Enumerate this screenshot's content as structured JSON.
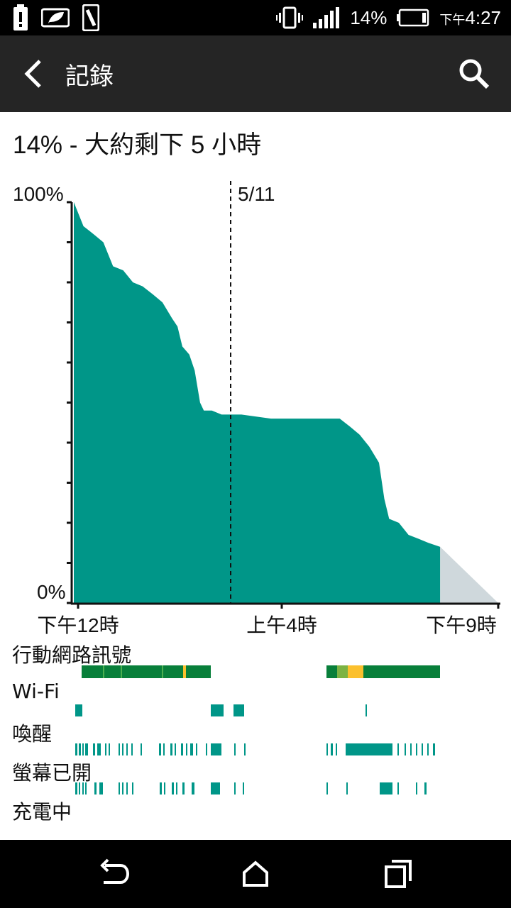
{
  "status_bar": {
    "icons": [
      "battery-alert-icon",
      "leaf-icon",
      "phone-card-icon",
      "vibrate-icon",
      "signal-icon",
      "battery-icon"
    ],
    "battery_percent": "14%",
    "time_prefix": "下午",
    "time": "4:27"
  },
  "app_bar": {
    "title": "記錄",
    "back_icon": "chevron-left-icon",
    "search_icon": "search-icon"
  },
  "summary": "14% - 大約剩下 5 小時",
  "chart_data": {
    "type": "area",
    "title": "",
    "ylabel_top": "100%",
    "ylabel_bottom": "0%",
    "ylim": [
      0,
      100
    ],
    "date_marker": "5/11",
    "x_ticks": [
      "下午12時",
      "上午4時",
      "下午9時"
    ],
    "series": [
      {
        "color": "#009688",
        "points": [
          [
            0,
            100
          ],
          [
            1.8,
            94
          ],
          [
            3.7,
            92
          ],
          [
            5.5,
            90
          ],
          [
            7.3,
            84
          ],
          [
            9.2,
            83
          ],
          [
            11,
            80
          ],
          [
            12.8,
            79
          ],
          [
            14.7,
            77
          ],
          [
            16.5,
            75
          ],
          [
            18.3,
            71
          ],
          [
            19.3,
            69
          ],
          [
            20.2,
            64
          ],
          [
            21.5,
            62
          ],
          [
            22.5,
            58
          ],
          [
            23.5,
            50
          ],
          [
            24.2,
            48
          ],
          [
            25.7,
            48
          ],
          [
            27.5,
            47
          ],
          [
            31.2,
            47
          ],
          [
            36.7,
            46
          ],
          [
            38.5,
            46
          ],
          [
            40.3,
            46
          ],
          [
            42.2,
            46
          ],
          [
            45.8,
            46
          ],
          [
            47.7,
            46
          ],
          [
            49.5,
            46
          ],
          [
            51.4,
            44
          ],
          [
            53.2,
            42
          ],
          [
            55,
            39
          ],
          [
            56.8,
            35
          ],
          [
            57.8,
            26
          ],
          [
            58.7,
            21
          ],
          [
            60.5,
            20
          ],
          [
            62.3,
            17
          ],
          [
            64.2,
            16
          ],
          [
            66.0,
            15
          ],
          [
            68.2,
            14
          ]
        ]
      },
      {
        "color": "#cfd8dc",
        "name": "",
        "points": [
          [
            68.2,
            14
          ],
          [
            79,
            0
          ]
        ]
      }
    ],
    "x_range_hours": [
      0,
      79
    ]
  },
  "activity_rows": [
    {
      "label": "行動網路訊號",
      "segments": [
        {
          "x": 115,
          "w": 182,
          "color": "#087f3a"
        },
        {
          "x": 145,
          "w": 2,
          "color": "#4caf50"
        },
        {
          "x": 170,
          "w": 2,
          "color": "#4caf50"
        },
        {
          "x": 228,
          "w": 2,
          "color": "#4caf50"
        },
        {
          "x": 258,
          "w": 4,
          "color": "#fbc02d"
        },
        {
          "x": 460,
          "w": 160,
          "color": "#087f3a"
        },
        {
          "x": 475,
          "w": 15,
          "color": "#7cb342"
        },
        {
          "x": 490,
          "w": 22,
          "color": "#fbc02d"
        }
      ]
    },
    {
      "label": "Wi-Fi",
      "segments": [
        {
          "x": 106,
          "w": 10,
          "color": "#009688"
        },
        {
          "x": 297,
          "w": 18,
          "color": "#009688"
        },
        {
          "x": 329,
          "w": 15,
          "color": "#009688"
        },
        {
          "x": 515,
          "w": 2,
          "color": "#009688"
        }
      ]
    },
    {
      "label": "喚醒",
      "segments": [
        {
          "x": 106,
          "w": 3,
          "color": "#009688"
        },
        {
          "x": 111,
          "w": 3,
          "color": "#009688"
        },
        {
          "x": 116,
          "w": 2,
          "color": "#009688"
        },
        {
          "x": 120,
          "w": 4,
          "color": "#009688"
        },
        {
          "x": 131,
          "w": 3,
          "color": "#009688"
        },
        {
          "x": 137,
          "w": 5,
          "color": "#009688"
        },
        {
          "x": 148,
          "w": 2,
          "color": "#009688"
        },
        {
          "x": 153,
          "w": 2,
          "color": "#009688"
        },
        {
          "x": 167,
          "w": 2,
          "color": "#009688"
        },
        {
          "x": 172,
          "w": 2,
          "color": "#009688"
        },
        {
          "x": 178,
          "w": 2,
          "color": "#009688"
        },
        {
          "x": 185,
          "w": 2,
          "color": "#009688"
        },
        {
          "x": 198,
          "w": 2,
          "color": "#009688"
        },
        {
          "x": 224,
          "w": 3,
          "color": "#009688"
        },
        {
          "x": 230,
          "w": 2,
          "color": "#009688"
        },
        {
          "x": 240,
          "w": 3,
          "color": "#009688"
        },
        {
          "x": 246,
          "w": 2,
          "color": "#009688"
        },
        {
          "x": 255,
          "w": 3,
          "color": "#009688"
        },
        {
          "x": 262,
          "w": 2,
          "color": "#009688"
        },
        {
          "x": 268,
          "w": 4,
          "color": "#009688"
        },
        {
          "x": 276,
          "w": 2,
          "color": "#009688"
        },
        {
          "x": 290,
          "w": 2,
          "color": "#009688"
        },
        {
          "x": 297,
          "w": 15,
          "color": "#009688"
        },
        {
          "x": 330,
          "w": 2,
          "color": "#009688"
        },
        {
          "x": 344,
          "w": 2,
          "color": "#009688"
        },
        {
          "x": 460,
          "w": 2,
          "color": "#009688"
        },
        {
          "x": 466,
          "w": 3,
          "color": "#009688"
        },
        {
          "x": 473,
          "w": 2,
          "color": "#009688"
        },
        {
          "x": 487,
          "w": 66,
          "color": "#009688"
        },
        {
          "x": 560,
          "w": 2,
          "color": "#009688"
        },
        {
          "x": 570,
          "w": 2,
          "color": "#009688"
        },
        {
          "x": 578,
          "w": 2,
          "color": "#009688"
        },
        {
          "x": 586,
          "w": 2,
          "color": "#009688"
        },
        {
          "x": 594,
          "w": 2,
          "color": "#009688"
        },
        {
          "x": 602,
          "w": 2,
          "color": "#009688"
        },
        {
          "x": 610,
          "w": 3,
          "color": "#009688"
        }
      ]
    },
    {
      "label": "螢幕已開",
      "segments": [
        {
          "x": 106,
          "w": 3,
          "color": "#009688"
        },
        {
          "x": 111,
          "w": 2,
          "color": "#009688"
        },
        {
          "x": 116,
          "w": 2,
          "color": "#009688"
        },
        {
          "x": 120,
          "w": 2,
          "color": "#009688"
        },
        {
          "x": 133,
          "w": 3,
          "color": "#009688"
        },
        {
          "x": 140,
          "w": 5,
          "color": "#009688"
        },
        {
          "x": 167,
          "w": 2,
          "color": "#009688"
        },
        {
          "x": 172,
          "w": 2,
          "color": "#009688"
        },
        {
          "x": 178,
          "w": 2,
          "color": "#009688"
        },
        {
          "x": 186,
          "w": 2,
          "color": "#009688"
        },
        {
          "x": 225,
          "w": 3,
          "color": "#009688"
        },
        {
          "x": 231,
          "w": 2,
          "color": "#009688"
        },
        {
          "x": 242,
          "w": 3,
          "color": "#009688"
        },
        {
          "x": 248,
          "w": 2,
          "color": "#009688"
        },
        {
          "x": 257,
          "w": 3,
          "color": "#009688"
        },
        {
          "x": 270,
          "w": 4,
          "color": "#009688"
        },
        {
          "x": 297,
          "w": 13,
          "color": "#009688"
        },
        {
          "x": 330,
          "w": 2,
          "color": "#009688"
        },
        {
          "x": 342,
          "w": 2,
          "color": "#009688"
        },
        {
          "x": 460,
          "w": 2,
          "color": "#009688"
        },
        {
          "x": 488,
          "w": 2,
          "color": "#009688"
        },
        {
          "x": 535,
          "w": 18,
          "color": "#009688"
        },
        {
          "x": 560,
          "w": 2,
          "color": "#009688"
        },
        {
          "x": 586,
          "w": 2,
          "color": "#009688"
        },
        {
          "x": 598,
          "w": 3,
          "color": "#009688"
        }
      ]
    },
    {
      "label": "充電中",
      "segments": []
    }
  ],
  "nav_bar": {
    "icons": [
      "back-icon",
      "home-icon",
      "recents-icon"
    ]
  },
  "colors": {
    "accent": "#009688",
    "projection": "#cfd8dc",
    "signal_good": "#087f3a",
    "signal_mid": "#7cb342",
    "signal_weak": "#fbc02d",
    "app_bar": "#252525"
  }
}
